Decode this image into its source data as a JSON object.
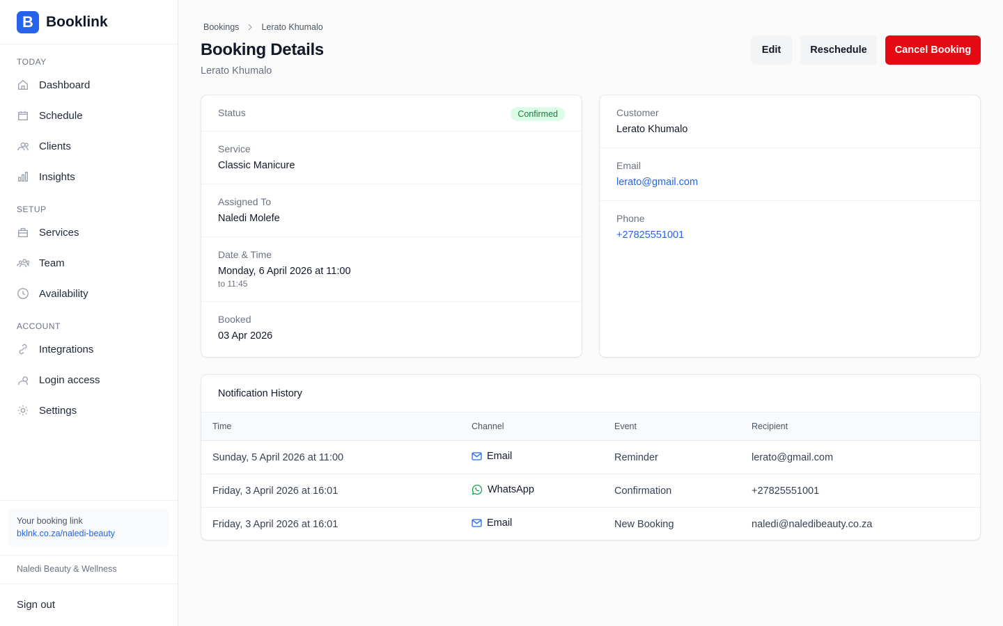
{
  "sidebar": {
    "logo_letter": "B",
    "brand": "Booklink",
    "sections": [
      {
        "title": "TODAY",
        "items": [
          "Dashboard",
          "Schedule",
          "Clients",
          "Insights"
        ]
      },
      {
        "title": "SETUP",
        "items": [
          "Services",
          "Team",
          "Availability"
        ]
      },
      {
        "title": "ACCOUNT",
        "items": [
          "Integrations",
          "Login access",
          "Settings"
        ]
      }
    ],
    "booking_link": {
      "label": "Your booking link",
      "url": "bklnk.co.za/naledi-beauty"
    },
    "business": "Naledi Beauty & Wellness",
    "sign_out": "Sign out"
  },
  "header": {
    "breadcrumb": [
      "Bookings",
      "Lerato Khumalo"
    ],
    "title": "Booking Details",
    "subtitle": "Lerato Khumalo",
    "actions": [
      "Edit",
      "Reschedule",
      "Cancel Booking"
    ]
  },
  "details": {
    "status": {
      "label": "Status",
      "value": "Confirmed"
    },
    "fields": [
      {
        "label": "Service",
        "value": "Classic Manicure"
      },
      {
        "label": "Assigned To",
        "value": "Naledi Molefe"
      },
      {
        "label": "Date & Time",
        "value": "Monday, 6 April 2026 at 11:00",
        "note": "to 11:45"
      },
      {
        "label": "Booked",
        "value": "03 Apr 2026"
      }
    ]
  },
  "customer": {
    "fields": [
      {
        "label": "Customer",
        "value": "Lerato Khumalo"
      },
      {
        "label": "Email",
        "value": "lerato@gmail.com"
      },
      {
        "label": "Phone",
        "value": "+27825551001"
      }
    ]
  },
  "notifications": {
    "title": "Notification History",
    "columns": [
      "Time",
      "Channel",
      "Event",
      "Recipient"
    ],
    "rows": [
      [
        "Sunday, 5 April 2026 at 11:00",
        "Email",
        "Reminder",
        "lerato@gmail.com"
      ],
      [
        "Friday, 3 April 2026 at 16:01",
        "WhatsApp",
        "Confirmation",
        "+27825551001"
      ],
      [
        "Friday, 3 April 2026 at 16:01",
        "Email",
        "New Booking",
        "naledi@naledibeauty.co.za"
      ]
    ]
  }
}
